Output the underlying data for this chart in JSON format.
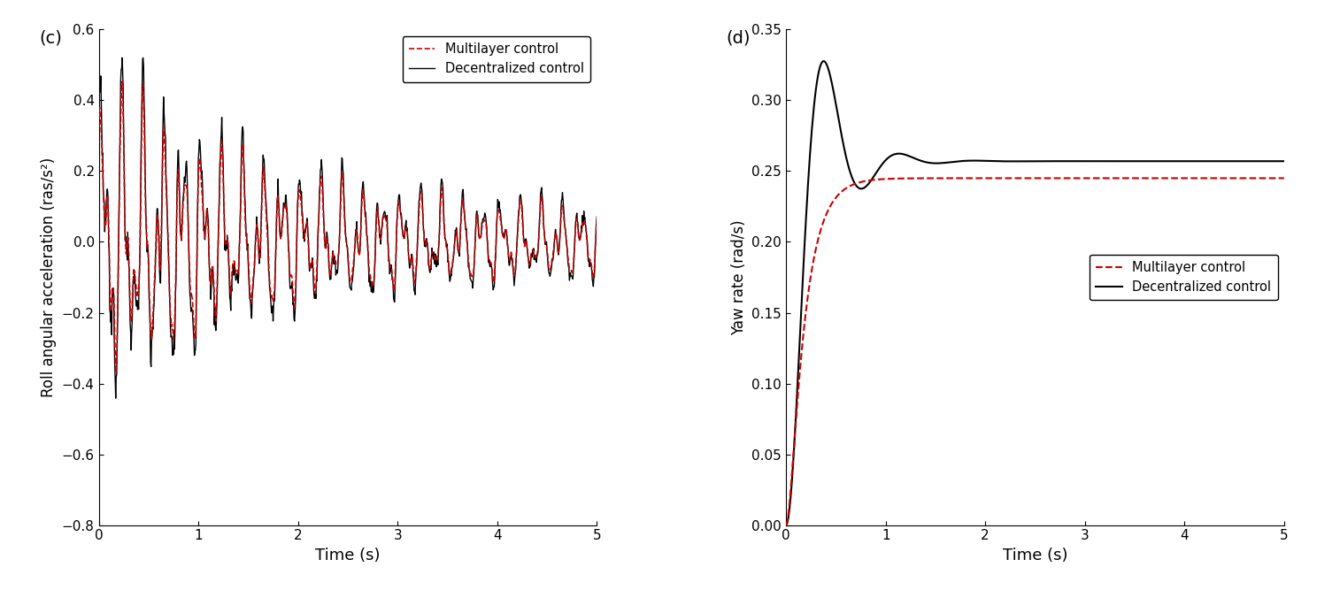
{
  "figsize": [
    14.88,
    6.67
  ],
  "dpi": 100,
  "panel_c": {
    "label": "(c)",
    "xlabel": "Time (s)",
    "ylabel": "Roll angular acceleration (ras/s²)",
    "xlim": [
      0,
      5
    ],
    "ylim": [
      -0.8,
      0.6
    ],
    "yticks": [
      -0.8,
      -0.6,
      -0.4,
      -0.2,
      0,
      0.2,
      0.4,
      0.6
    ],
    "xticks": [
      0,
      1,
      2,
      3,
      4,
      5
    ],
    "legend_loc": "upper right",
    "multilayer_color": "#cc0000",
    "decentralized_color": "#000000",
    "multilayer_style": "--",
    "decentralized_style": "-",
    "linewidth_dec": 1.0,
    "linewidth_mul": 1.2
  },
  "panel_d": {
    "label": "(d)",
    "xlabel": "Time (s)",
    "ylabel": "Yaw rate (rad/s)",
    "xlim": [
      0,
      5
    ],
    "ylim": [
      0,
      0.35
    ],
    "yticks": [
      0,
      0.05,
      0.1,
      0.15,
      0.2,
      0.25,
      0.3,
      0.35
    ],
    "xticks": [
      0,
      1,
      2,
      3,
      4,
      5
    ],
    "legend_loc": "center right",
    "multilayer_color": "#cc0000",
    "decentralized_color": "#000000",
    "multilayer_style": "--",
    "decentralized_style": "-",
    "linewidth_dec": 1.5,
    "linewidth_mul": 1.5
  }
}
